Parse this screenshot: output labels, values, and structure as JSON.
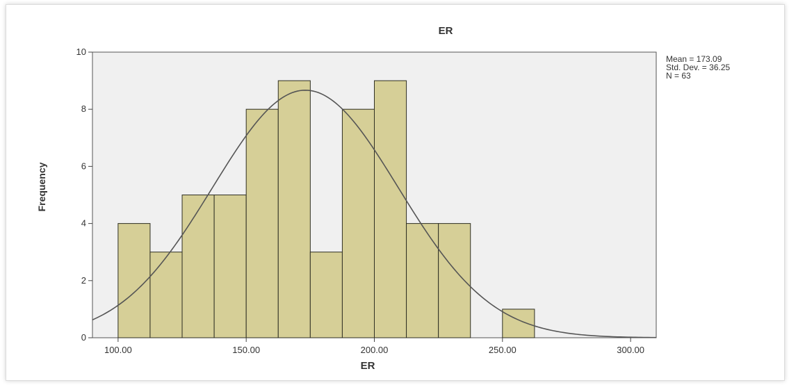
{
  "chart_data": {
    "type": "bar",
    "title": "ER",
    "xlabel": "ER",
    "ylabel": "Frequency",
    "xlim": [
      90,
      310
    ],
    "ylim": [
      0,
      10
    ],
    "x_ticks": [
      "100.00",
      "150.00",
      "200.00",
      "250.00",
      "300.00"
    ],
    "x_tick_values": [
      100,
      150,
      200,
      250,
      300
    ],
    "y_ticks": [
      "0",
      "2",
      "4",
      "6",
      "8",
      "10"
    ],
    "y_tick_values": [
      0,
      2,
      4,
      6,
      8,
      10
    ],
    "bin_width": 12.5,
    "bins": [
      {
        "start": 100,
        "end": 112.5,
        "value": 4
      },
      {
        "start": 112.5,
        "end": 125,
        "value": 3
      },
      {
        "start": 125,
        "end": 137.5,
        "value": 5
      },
      {
        "start": 137.5,
        "end": 150,
        "value": 5
      },
      {
        "start": 150,
        "end": 162.5,
        "value": 8
      },
      {
        "start": 162.5,
        "end": 175,
        "value": 9
      },
      {
        "start": 175,
        "end": 187.5,
        "value": 3
      },
      {
        "start": 187.5,
        "end": 200,
        "value": 8
      },
      {
        "start": 200,
        "end": 212.5,
        "value": 9
      },
      {
        "start": 212.5,
        "end": 225,
        "value": 4
      },
      {
        "start": 225,
        "end": 237.5,
        "value": 4
      },
      {
        "start": 237.5,
        "end": 250,
        "value": 0
      },
      {
        "start": 250,
        "end": 262.5,
        "value": 1
      }
    ],
    "normal_curve": {
      "mean": 173.09,
      "std_dev": 36.25,
      "n": 63
    },
    "stats_text": [
      "Mean = 173.09",
      "Std. Dev. = 36.25",
      "N = 63"
    ],
    "legend_position": "right",
    "grid": false
  },
  "colors": {
    "bar_fill": "#d6cf97",
    "bar_stroke": "#2e2e22",
    "plot_background": "#f0f0f0",
    "curve": "#555555",
    "axis": "#444444",
    "text": "#333333"
  }
}
